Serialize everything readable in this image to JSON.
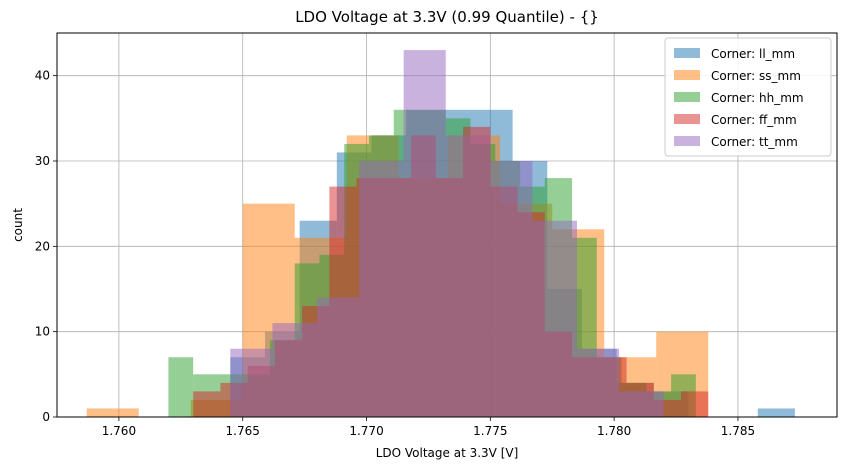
{
  "chart_data": {
    "type": "bar",
    "title": "LDO Voltage at 3.3V (0.99 Quantile) - {}",
    "xlabel": "LDO Voltage at 3.3V [V]",
    "ylabel": "count",
    "xlim": [
      1.7575,
      1.789
    ],
    "ylim": [
      0,
      45
    ],
    "xticks": [
      1.76,
      1.765,
      1.77,
      1.775,
      1.78,
      1.785
    ],
    "xtick_labels": [
      "1.760",
      "1.765",
      "1.770",
      "1.775",
      "1.780",
      "1.785"
    ],
    "yticks": [
      0,
      10,
      20,
      30,
      40
    ],
    "ytick_labels": [
      "0",
      "10",
      "20",
      "30",
      "40"
    ],
    "grid": true,
    "legend_position": "top-right",
    "bar_opacity": 0.5,
    "series": [
      {
        "name": "Corner: ll_mm",
        "color": "#1f77b4",
        "bin_edges": [
          1.7645,
          1.7659,
          1.7673,
          1.7688,
          1.7702,
          1.7716,
          1.773,
          1.7745,
          1.7759,
          1.7773,
          1.7787,
          1.7801,
          1.7816,
          1.783,
          1.7844,
          1.7858,
          1.7873
        ],
        "counts": [
          7,
          10,
          23,
          31,
          33,
          36,
          36,
          36,
          30,
          15,
          8,
          4,
          3,
          0,
          0,
          1
        ]
      },
      {
        "name": "Corner: ss_mm",
        "color": "#ff7f0e",
        "bin_edges": [
          1.7587,
          1.7608,
          1.7629,
          1.765,
          1.7671,
          1.7692,
          1.7713,
          1.7733,
          1.7754,
          1.7775,
          1.7796,
          1.7817,
          1.7838
        ],
        "counts": [
          1,
          0,
          2,
          25,
          21,
          33,
          28,
          33,
          25,
          22,
          7,
          10
        ]
      },
      {
        "name": "Corner: hh_mm",
        "color": "#2ca02c",
        "bin_edges": [
          1.762,
          1.763,
          1.764,
          1.765,
          1.7661,
          1.7671,
          1.7681,
          1.7691,
          1.7701,
          1.7711,
          1.7722,
          1.7732,
          1.7742,
          1.7752,
          1.7762,
          1.7772,
          1.7783,
          1.7793,
          1.7803,
          1.7813,
          1.7823,
          1.7833
        ],
        "counts": [
          7,
          5,
          5,
          5,
          9,
          18,
          19,
          32,
          33,
          36,
          36,
          35,
          32,
          30,
          27,
          28,
          21,
          7,
          4,
          3,
          5
        ]
      },
      {
        "name": "Corner: ff_mm",
        "color": "#d62728",
        "bin_edges": [
          1.763,
          1.7641,
          1.7652,
          1.7663,
          1.7674,
          1.7685,
          1.7696,
          1.7707,
          1.7718,
          1.7728,
          1.7739,
          1.775,
          1.7761,
          1.7772,
          1.7783,
          1.7794,
          1.7805,
          1.7816,
          1.7827,
          1.7838
        ],
        "counts": [
          3,
          4,
          6,
          9,
          13,
          27,
          28,
          28,
          33,
          28,
          34,
          27,
          24,
          10,
          7,
          7,
          4,
          2,
          3
        ]
      },
      {
        "name": "Corner: tt_mm",
        "color": "#9467bd",
        "bin_edges": [
          1.7645,
          1.7662,
          1.768,
          1.7697,
          1.7715,
          1.7732,
          1.775,
          1.7767,
          1.7785,
          1.7802,
          1.782
        ],
        "counts": [
          8,
          11,
          14,
          30,
          43,
          33,
          30,
          23,
          8,
          3
        ]
      }
    ]
  }
}
